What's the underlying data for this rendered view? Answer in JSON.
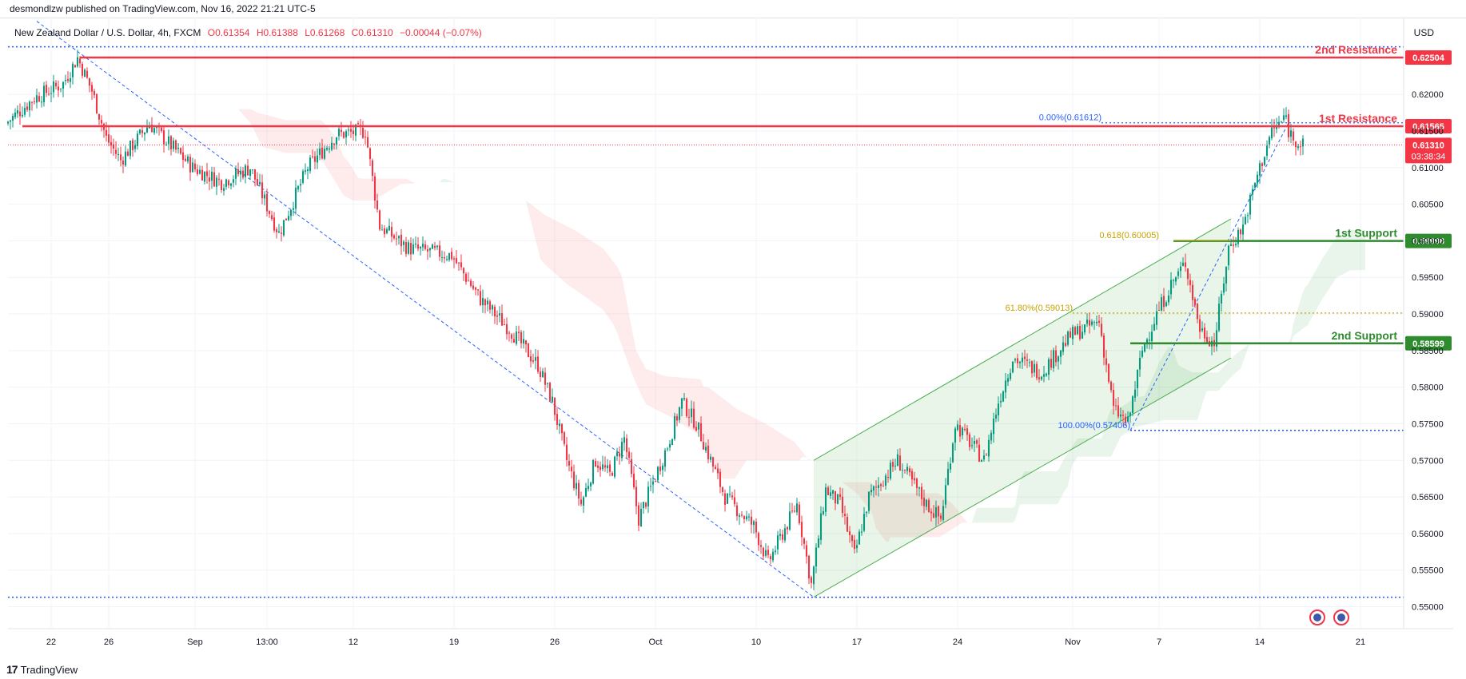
{
  "header": {
    "published": "desmondlzw published on TradingView.com, Nov 16, 2022 21:21 UTC-5",
    "symbol": "New Zealand Dollar / U.S. Dollar, 4h, FXCM",
    "open": "O0.61354",
    "high": "H0.61388",
    "low": "L0.61268",
    "close": "C0.61310",
    "change": "−0.00044 (−0.07%)",
    "currency": "USD"
  },
  "footer": {
    "brand": "TradingView",
    "logo": "17"
  },
  "colors": {
    "up": "#089981",
    "down": "#f23645",
    "resistance": "#f23645",
    "support": "#2e8b2e",
    "fib_blue": "#2962ff",
    "fib_gold": "#c7a300",
    "channel": "#4caf50"
  },
  "chart_data": {
    "type": "candlestick",
    "xlim": [
      "2022-08-19",
      "2022-11-24"
    ],
    "ylim": [
      0.547,
      0.6305
    ],
    "x_ticks": [
      {
        "label": "22",
        "x": "2022-08-22"
      },
      {
        "label": "26",
        "x": "2022-08-26"
      },
      {
        "label": "Sep",
        "x": "2022-09-01"
      },
      {
        "label": "13:00",
        "x": "2022-09-06"
      },
      {
        "label": "12",
        "x": "2022-09-12"
      },
      {
        "label": "19",
        "x": "2022-09-19"
      },
      {
        "label": "26",
        "x": "2022-09-26"
      },
      {
        "label": "Oct",
        "x": "2022-10-03"
      },
      {
        "label": "10",
        "x": "2022-10-10"
      },
      {
        "label": "17",
        "x": "2022-10-17"
      },
      {
        "label": "24",
        "x": "2022-10-24"
      },
      {
        "label": "Nov",
        "x": "2022-11-01"
      },
      {
        "label": "7",
        "x": "2022-11-07"
      },
      {
        "label": "14",
        "x": "2022-11-14"
      },
      {
        "label": "21",
        "x": "2022-11-21"
      }
    ],
    "y_ticks": [
      0.55,
      0.555,
      0.56,
      0.565,
      0.57,
      0.575,
      0.58,
      0.585,
      0.59,
      0.595,
      0.6,
      0.605,
      0.61,
      0.615,
      0.62
    ],
    "y_tick_labels": [
      "0.55000",
      "0.55500",
      "0.56000",
      "0.56500",
      "0.57000",
      "0.57500",
      "0.58000",
      "0.58500",
      "0.59000",
      "0.59500",
      "0.60000",
      "0.60500",
      "0.61000",
      "0.61500",
      "0.62000"
    ],
    "price_path": [
      {
        "x": "2022-08-19",
        "y": 0.616
      },
      {
        "x": "2022-08-21",
        "y": 0.6195
      },
      {
        "x": "2022-08-23",
        "y": 0.6215
      },
      {
        "x": "2022-08-24",
        "y": 0.625
      },
      {
        "x": "2022-08-25",
        "y": 0.6205
      },
      {
        "x": "2022-08-26",
        "y": 0.614
      },
      {
        "x": "2022-08-27",
        "y": 0.611
      },
      {
        "x": "2022-08-29",
        "y": 0.616
      },
      {
        "x": "2022-09-01",
        "y": 0.61
      },
      {
        "x": "2022-09-03",
        "y": 0.608
      },
      {
        "x": "2022-09-05",
        "y": 0.61
      },
      {
        "x": "2022-09-07",
        "y": 0.601
      },
      {
        "x": "2022-09-09",
        "y": 0.61
      },
      {
        "x": "2022-09-11",
        "y": 0.6145
      },
      {
        "x": "2022-09-13",
        "y": 0.615
      },
      {
        "x": "2022-09-14",
        "y": 0.602
      },
      {
        "x": "2022-09-16",
        "y": 0.599
      },
      {
        "x": "2022-09-19",
        "y": 0.598
      },
      {
        "x": "2022-09-21",
        "y": 0.592
      },
      {
        "x": "2022-09-23",
        "y": 0.588
      },
      {
        "x": "2022-09-25",
        "y": 0.583
      },
      {
        "x": "2022-09-26",
        "y": 0.578
      },
      {
        "x": "2022-09-27",
        "y": 0.57
      },
      {
        "x": "2022-09-28",
        "y": 0.564
      },
      {
        "x": "2022-09-29",
        "y": 0.57
      },
      {
        "x": "2022-09-30",
        "y": 0.568
      },
      {
        "x": "2022-10-01",
        "y": 0.573
      },
      {
        "x": "2022-10-02",
        "y": 0.562
      },
      {
        "x": "2022-10-04",
        "y": 0.572
      },
      {
        "x": "2022-10-05",
        "y": 0.578
      },
      {
        "x": "2022-10-06",
        "y": 0.575
      },
      {
        "x": "2022-10-07",
        "y": 0.57
      },
      {
        "x": "2022-10-08",
        "y": 0.565
      },
      {
        "x": "2022-10-10",
        "y": 0.561
      },
      {
        "x": "2022-10-11",
        "y": 0.556
      },
      {
        "x": "2022-10-12",
        "y": 0.56
      },
      {
        "x": "2022-10-13",
        "y": 0.564
      },
      {
        "x": "2022-10-14",
        "y": 0.553
      },
      {
        "x": "2022-10-15",
        "y": 0.566
      },
      {
        "x": "2022-10-16",
        "y": 0.564
      },
      {
        "x": "2022-10-17",
        "y": 0.557
      },
      {
        "x": "2022-10-18",
        "y": 0.565
      },
      {
        "x": "2022-10-20",
        "y": 0.57
      },
      {
        "x": "2022-10-22",
        "y": 0.564
      },
      {
        "x": "2022-10-23",
        "y": 0.562
      },
      {
        "x": "2022-10-24",
        "y": 0.575
      },
      {
        "x": "2022-10-26",
        "y": 0.57
      },
      {
        "x": "2022-10-27",
        "y": 0.578
      },
      {
        "x": "2022-10-28",
        "y": 0.584
      },
      {
        "x": "2022-10-30",
        "y": 0.582
      },
      {
        "x": "2022-11-01",
        "y": 0.587
      },
      {
        "x": "2022-11-03",
        "y": 0.589
      },
      {
        "x": "2022-11-04",
        "y": 0.577
      },
      {
        "x": "2022-11-05",
        "y": 0.575
      },
      {
        "x": "2022-11-06",
        "y": 0.585
      },
      {
        "x": "2022-11-07",
        "y": 0.59
      },
      {
        "x": "2022-11-08",
        "y": 0.594
      },
      {
        "x": "2022-11-09",
        "y": 0.597
      },
      {
        "x": "2022-11-10",
        "y": 0.588
      },
      {
        "x": "2022-11-11",
        "y": 0.586
      },
      {
        "x": "2022-11-12",
        "y": 0.599
      },
      {
        "x": "2022-11-13",
        "y": 0.602
      },
      {
        "x": "2022-11-14",
        "y": 0.609
      },
      {
        "x": "2022-11-15",
        "y": 0.615
      },
      {
        "x": "2022-11-16",
        "y": 0.617
      },
      {
        "x": "2022-11-16",
        "y": 0.615
      },
      {
        "x": "2022-11-17",
        "y": 0.6131
      }
    ],
    "levels": [
      {
        "name": "2nd Resistance",
        "value": 0.62504,
        "label": "0.62504",
        "x0": "2022-08-24",
        "kind": "resistance"
      },
      {
        "name": "1st Resistance",
        "value": 0.61565,
        "label": "0.61565",
        "x0": "2022-08-20",
        "kind": "resistance"
      },
      {
        "name": "1st Support",
        "value": 0.59998,
        "label": "0.59998",
        "x0": "2022-11-08",
        "kind": "support"
      },
      {
        "name": "2nd Support",
        "value": 0.58599,
        "label": "0.58599",
        "x0": "2022-11-05",
        "kind": "support"
      }
    ],
    "dotted_lines": [
      {
        "value": 0.6265,
        "x0": "2022-08-19",
        "x1": "2022-11-24"
      },
      {
        "value": 0.5513,
        "x0": "2022-08-19",
        "x1": "2022-11-24"
      },
      {
        "value": 0.5741,
        "x0": "2022-11-05",
        "x1": "2022-11-24"
      }
    ],
    "current_price": {
      "value": 0.6131,
      "label": "0.61310",
      "countdown": "03:38:34"
    },
    "fib_labels": [
      {
        "text": "0.00%(0.61612)",
        "value": 0.61612,
        "x": "2022-11-03",
        "color": "blue"
      },
      {
        "text": "100.00%(0.57406)",
        "value": 0.57406,
        "x": "2022-11-05",
        "color": "blue"
      },
      {
        "text": "61.80%(0.59013)",
        "value": 0.59013,
        "x": "2022-11-01",
        "color": "gold"
      },
      {
        "text": "0.618(0.60005)",
        "value": 0.60005,
        "x": "2022-11-07",
        "color": "gold"
      }
    ],
    "downtrend_line": {
      "x0": "2022-08-21",
      "y0": 0.63,
      "x1": "2022-10-14",
      "y1": 0.5513
    },
    "channel": {
      "lower": {
        "x0": "2022-10-14",
        "y0": 0.5513,
        "x1": "2022-11-12",
        "y1": 0.584
      },
      "upper": {
        "x0": "2022-10-14",
        "y0": 0.57,
        "x1": "2022-11-12",
        "y1": 0.603
      }
    },
    "event_icons": 2
  }
}
